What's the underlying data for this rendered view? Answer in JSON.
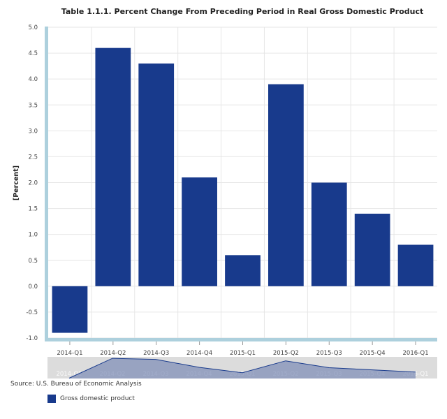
{
  "chart_data": {
    "type": "bar",
    "title": "Table 1.1.1. Percent Change From Preceding Period in Real Gross Domestic Product",
    "ylabel": "[Percent]",
    "xlabel": "",
    "categories": [
      "2014-Q1",
      "2014-Q2",
      "2014-Q3",
      "2014-Q4",
      "2015-Q1",
      "2015-Q2",
      "2015-Q3",
      "2015-Q4",
      "2016-Q1"
    ],
    "series": [
      {
        "name": "Gross domestic product",
        "values": [
          -0.9,
          4.6,
          4.3,
          2.1,
          0.6,
          3.9,
          2.0,
          1.4,
          0.8
        ],
        "color": "#183a8c"
      }
    ],
    "ylim": [
      -1.0,
      5.0
    ],
    "yticks": [
      "5.0",
      "4.5",
      "4.0",
      "3.5",
      "3.0",
      "2.5",
      "2.0",
      "1.5",
      "1.0",
      "0.5",
      "0.0",
      "-0.5",
      "-1.0"
    ],
    "grid": true,
    "legend_position": "bottom-left",
    "has_navigator": true
  },
  "source": "Source: U.S. Bureau of Economic Analysis",
  "colors": {
    "bar": "#183a8c",
    "axis_accent": "#add0dd",
    "grid": "#e6e6e6",
    "navigator_bg": "#dcdcdc",
    "navigator_fill": "#8290b8"
  }
}
